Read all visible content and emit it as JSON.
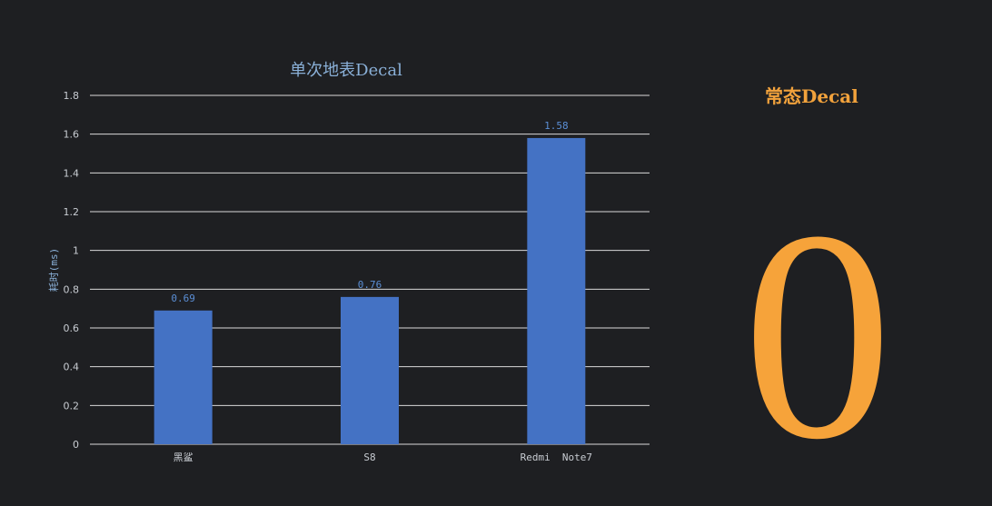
{
  "chart_data": {
    "type": "bar",
    "title": "单次地表Decal",
    "ylabel": "耗时(ms)",
    "xlabel": "",
    "categories": [
      "黑鲨",
      "S8",
      "Redmi  Note7"
    ],
    "values": [
      0.69,
      0.76,
      1.58
    ],
    "value_labels": [
      "0.69",
      "0.76",
      "1.58"
    ],
    "ylim": [
      0,
      1.8
    ],
    "yticks": [
      "0",
      "0.2",
      "0.4",
      "0.6",
      "0.8",
      "1",
      "1.2",
      "1.4",
      "1.6",
      "1.8"
    ],
    "grid": true,
    "bar_color": "#4472c4",
    "grid_color": "#d9d9d9"
  },
  "side_panel": {
    "title": "常态Decal",
    "value": "0",
    "color": "#f6a33a"
  }
}
